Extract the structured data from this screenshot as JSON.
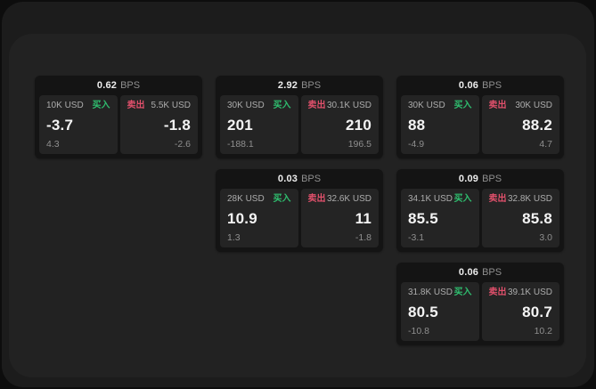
{
  "window": {
    "bg_outer": "#0d0d0d",
    "bg_frame": "#1c1c1c",
    "bg_surface": "#222222"
  },
  "labels": {
    "buy": "买入",
    "sell": "卖出",
    "bps_unit": "BPS"
  },
  "colors": {
    "buy_accent": "#2fbe6f",
    "sell_accent": "#e0506b",
    "card_bg": "#141414",
    "panel_bg": "#242424"
  },
  "cards": [
    {
      "bps": "0.62",
      "buy": {
        "amount": "10K USD",
        "price": "-3.7",
        "delta": "4.3"
      },
      "sell": {
        "amount": "5.5K USD",
        "price": "-1.8",
        "delta": "-2.6"
      }
    },
    {
      "bps": "2.92",
      "buy": {
        "amount": "30K USD",
        "price": "201",
        "delta": "-188.1"
      },
      "sell": {
        "amount": "30.1K USD",
        "price": "210",
        "delta": "196.5"
      }
    },
    {
      "bps": "0.06",
      "buy": {
        "amount": "30K USD",
        "price": "88",
        "delta": "-4.9"
      },
      "sell": {
        "amount": "30K USD",
        "price": "88.2",
        "delta": "4.7"
      }
    },
    {
      "bps": "0.03",
      "buy": {
        "amount": "28K USD",
        "price": "10.9",
        "delta": "1.3"
      },
      "sell": {
        "amount": "32.6K USD",
        "price": "11",
        "delta": "-1.8"
      }
    },
    {
      "bps": "0.09",
      "buy": {
        "amount": "34.1K USD",
        "price": "85.5",
        "delta": "-3.1"
      },
      "sell": {
        "amount": "32.8K USD",
        "price": "85.8",
        "delta": "3.0"
      }
    },
    {
      "bps": "0.06",
      "buy": {
        "amount": "31.8K USD",
        "price": "80.5",
        "delta": "-10.8"
      },
      "sell": {
        "amount": "39.1K USD",
        "price": "80.7",
        "delta": "10.2"
      }
    }
  ]
}
